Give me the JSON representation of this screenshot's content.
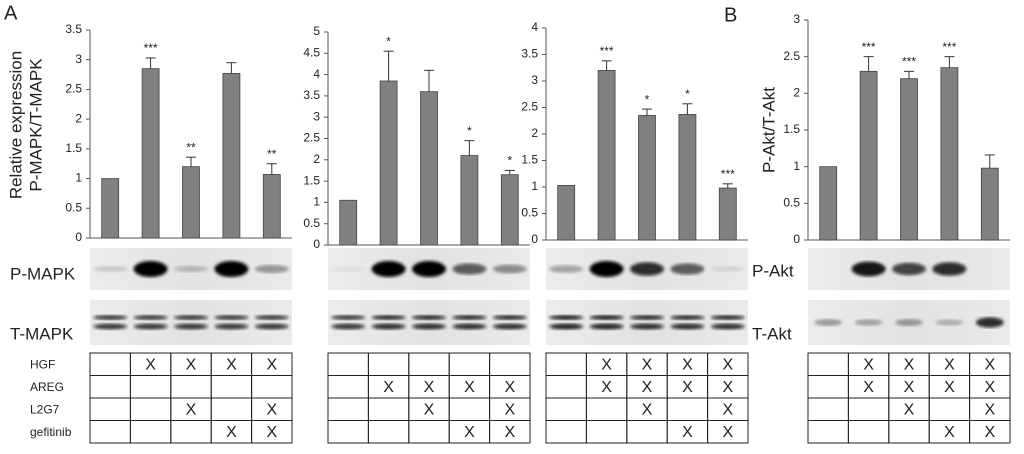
{
  "panels": [
    "A",
    "B"
  ],
  "chart_data": [
    {
      "type": "bar",
      "y_label": [
        "Relative expression",
        "P-MAPK/T-MAPK"
      ],
      "values": [
        1,
        2.85,
        1.2,
        2.77,
        1.07
      ],
      "errors": [
        null,
        0.18,
        0.16,
        0.18,
        0.18
      ],
      "annotations": [
        null,
        "***",
        "**",
        null,
        "**"
      ],
      "color": "#808080",
      "ylim": [
        0,
        3.5
      ],
      "yticks": [
        0,
        0.5,
        1,
        1.5,
        2,
        2.5,
        3,
        3.5
      ]
    },
    {
      "type": "bar",
      "values": [
        1.05,
        3.85,
        3.6,
        2.1,
        1.65
      ],
      "errors": [
        null,
        0.7,
        0.5,
        0.35,
        0.1
      ],
      "annotations": [
        null,
        "*",
        null,
        "*",
        "*"
      ],
      "color": "#808080",
      "ylim": [
        0,
        5
      ],
      "yticks": [
        0,
        0.5,
        1,
        1.5,
        2,
        2.5,
        3,
        3.5,
        4,
        4.5,
        5
      ]
    },
    {
      "type": "bar",
      "values": [
        1.03,
        3.2,
        2.35,
        2.37,
        0.98
      ],
      "errors": [
        null,
        0.18,
        0.12,
        0.2,
        0.08
      ],
      "annotations": [
        null,
        "***",
        "*",
        "*",
        "***"
      ],
      "color": "#808080",
      "ylim": [
        0,
        4
      ],
      "yticks": [
        0,
        0.5,
        1,
        1.5,
        2,
        2.5,
        3,
        3.5,
        4
      ]
    },
    {
      "type": "bar",
      "y_label": [
        "P-Akt/T-Akt"
      ],
      "values": [
        1,
        2.3,
        2.2,
        2.35,
        0.98
      ],
      "errors": [
        null,
        0.2,
        0.1,
        0.15,
        0.18
      ],
      "annotations": [
        null,
        "***",
        "***",
        "***",
        null
      ],
      "color": "#808080",
      "ylim": [
        0,
        3
      ],
      "yticks": [
        0,
        0.5,
        1,
        1.5,
        2,
        2.5,
        3
      ]
    }
  ],
  "blot_labels": [
    "P-MAPK",
    "T-MAPK",
    "P-Akt",
    "T-Akt"
  ],
  "treatment_labels": [
    "HGF",
    "AREG",
    "L2G7",
    "gefitinib"
  ],
  "treatment_tables": [
    {
      "rows": [
        [
          null,
          "X",
          "X",
          "X",
          "X"
        ],
        [
          null,
          null,
          null,
          null,
          null
        ],
        [
          null,
          null,
          "X",
          null,
          "X"
        ],
        [
          null,
          null,
          null,
          "X",
          "X"
        ]
      ]
    },
    {
      "rows": [
        [
          null,
          null,
          null,
          null,
          null
        ],
        [
          null,
          "X",
          "X",
          "X",
          "X"
        ],
        [
          null,
          null,
          "X",
          null,
          "X"
        ],
        [
          null,
          null,
          null,
          "X",
          "X"
        ]
      ]
    },
    {
      "rows": [
        [
          null,
          "X",
          "X",
          "X",
          "X"
        ],
        [
          null,
          "X",
          "X",
          "X",
          "X"
        ],
        [
          null,
          null,
          "X",
          null,
          "X"
        ],
        [
          null,
          null,
          null,
          "X",
          "X"
        ]
      ]
    },
    {
      "rows": [
        [
          null,
          "X",
          "X",
          "X",
          "X"
        ],
        [
          null,
          "X",
          "X",
          "X",
          "X"
        ],
        [
          null,
          null,
          "X",
          null,
          "X"
        ],
        [
          null,
          null,
          null,
          "X",
          "X"
        ]
      ]
    }
  ]
}
